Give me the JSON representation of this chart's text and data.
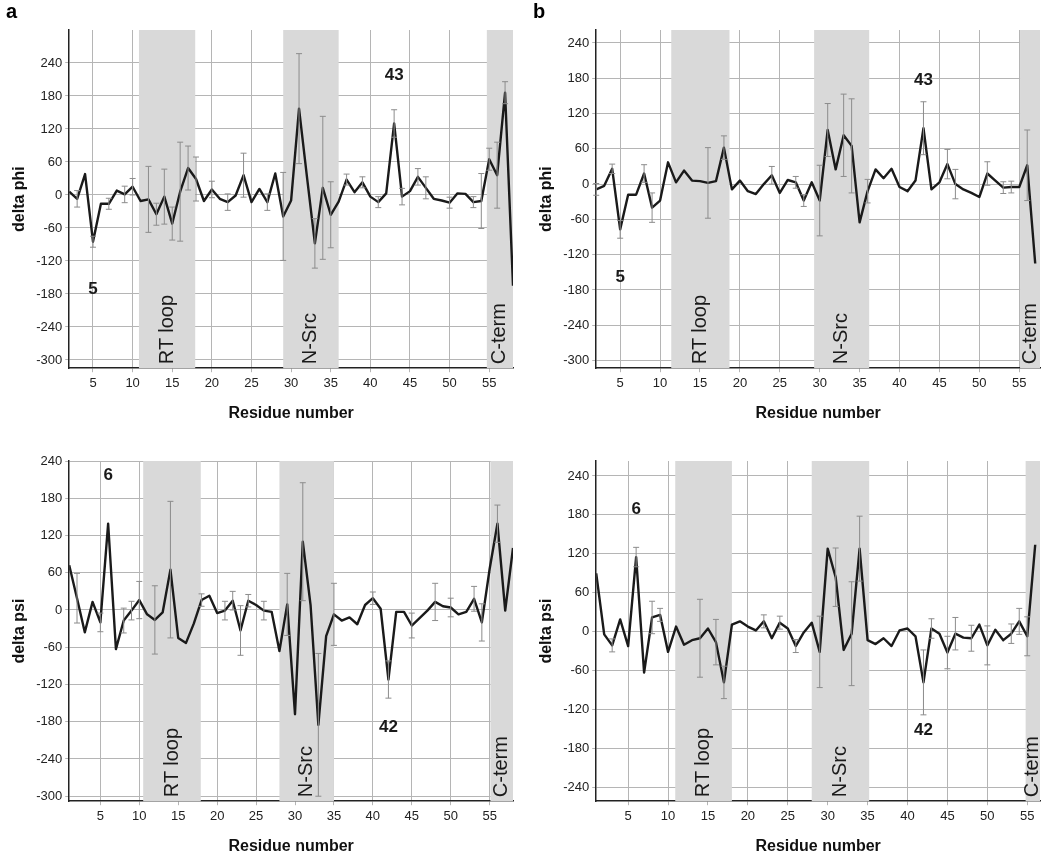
{
  "chart_data": [
    {
      "type": "line",
      "title": "a",
      "xlabel": "Residue number",
      "ylabel": "delta phi",
      "grid": true,
      "marker": "none",
      "xlim": [
        2,
        58
      ],
      "xticks": [
        5,
        10,
        15,
        20,
        25,
        30,
        35,
        40,
        45,
        50,
        55
      ],
      "ylim": [
        -315,
        300
      ],
      "yticks": [
        -300,
        -240,
        -180,
        -120,
        -60,
        0,
        60,
        120,
        180,
        240
      ],
      "x": [
        2,
        3,
        4,
        5,
        6,
        7,
        8,
        9,
        10,
        11,
        12,
        13,
        14,
        15,
        16,
        17,
        18,
        19,
        20,
        21,
        22,
        23,
        24,
        25,
        26,
        27,
        28,
        29,
        30,
        31,
        32,
        33,
        34,
        35,
        36,
        37,
        38,
        39,
        40,
        41,
        42,
        43,
        44,
        45,
        46,
        47,
        48,
        49,
        50,
        51,
        52,
        53,
        54,
        55,
        56,
        57,
        58
      ],
      "series": [
        {
          "color": "#1a1a1a",
          "values": [
            6,
            -7,
            38,
            -85,
            -16,
            -16,
            8,
            1,
            15,
            -11,
            -8,
            -35,
            -3,
            -52,
            6,
            49,
            29,
            -11,
            10,
            -7,
            -13,
            -1,
            36,
            -13,
            11,
            -13,
            39,
            -39,
            -10,
            157,
            33,
            -88,
            13,
            -36,
            -12,
            28,
            5,
            23,
            -3,
            -13,
            3,
            130,
            -3,
            7,
            33,
            13,
            -7,
            -10,
            -14,
            3,
            2,
            -13,
            -11,
            65,
            36,
            186,
            -165
          ],
          "errors": [
            null,
            15,
            null,
            10,
            null,
            10,
            null,
            15,
            15,
            null,
            60,
            20,
            50,
            30,
            90,
            40,
            40,
            null,
            15,
            null,
            15,
            null,
            40,
            null,
            null,
            15,
            null,
            80,
            null,
            100,
            null,
            45,
            130,
            60,
            null,
            10,
            null,
            10,
            null,
            10,
            null,
            25,
            15,
            null,
            15,
            20,
            null,
            null,
            10,
            null,
            null,
            10,
            50,
            20,
            60,
            20,
            null
          ]
        }
      ],
      "bands": [
        {
          "axis": "x",
          "from": 10.8,
          "to": 17.9,
          "label": "RT loop",
          "color": "#d9d9d9"
        },
        {
          "axis": "x",
          "from": 29,
          "to": 36,
          "label": "N-Src",
          "color": "#d9d9d9"
        },
        {
          "axis": "x",
          "from": 54.7,
          "to": 58,
          "label": "C-term",
          "color": "#d9d9d9"
        }
      ],
      "annotations": [
        {
          "text": "5",
          "x": 5,
          "y": -85
        },
        {
          "text": "43",
          "x": 43,
          "y": 130
        }
      ]
    },
    {
      "type": "line",
      "title": "b",
      "xlabel": "Residue number",
      "ylabel": "delta phi",
      "grid": true,
      "marker": "none",
      "xlim": [
        2,
        57.6
      ],
      "xticks": [
        5,
        10,
        15,
        20,
        25,
        30,
        35,
        40,
        45,
        50,
        55
      ],
      "ylim": [
        -313,
        262
      ],
      "yticks": [
        -300,
        -240,
        -180,
        -120,
        -60,
        0,
        60,
        120,
        180,
        240
      ],
      "x": [
        2,
        3,
        4,
        5,
        6,
        7,
        8,
        9,
        10,
        11,
        12,
        13,
        14,
        15,
        16,
        17,
        18,
        19,
        20,
        21,
        22,
        23,
        24,
        25,
        26,
        27,
        28,
        29,
        30,
        31,
        32,
        33,
        34,
        35,
        36,
        37,
        38,
        39,
        40,
        41,
        42,
        43,
        44,
        45,
        46,
        47,
        48,
        49,
        50,
        51,
        52,
        53,
        54,
        55,
        56,
        57
      ],
      "series": [
        {
          "color": "#1a1a1a",
          "values": [
            -9,
            -3,
            26,
            -77,
            -18,
            -18,
            18,
            -40,
            -28,
            37,
            3,
            23,
            6,
            5,
            2,
            5,
            62,
            -9,
            6,
            -12,
            -17,
            0,
            15,
            -15,
            7,
            3,
            -28,
            3,
            -28,
            92,
            25,
            83,
            65,
            -65,
            -12,
            25,
            10,
            26,
            -5,
            -12,
            6,
            95,
            -9,
            3,
            34,
            0,
            -9,
            -15,
            -22,
            18,
            6,
            -6,
            -5,
            -5,
            32,
            -135
          ],
          "errors": [
            10,
            null,
            8,
            15,
            null,
            null,
            15,
            25,
            null,
            null,
            null,
            null,
            null,
            null,
            60,
            null,
            20,
            null,
            null,
            null,
            null,
            null,
            15,
            null,
            null,
            10,
            10,
            null,
            60,
            45,
            null,
            70,
            80,
            null,
            20,
            null,
            null,
            null,
            null,
            null,
            null,
            45,
            null,
            null,
            25,
            25,
            null,
            null,
            null,
            20,
            null,
            10,
            10,
            null,
            60,
            null
          ]
        }
      ],
      "bands": [
        {
          "axis": "x",
          "from": 11.4,
          "to": 18.7,
          "label": "RT loop",
          "color": "#d9d9d9"
        },
        {
          "axis": "x",
          "from": 29.3,
          "to": 36.2,
          "label": "N-Src",
          "color": "#d9d9d9"
        },
        {
          "axis": "x",
          "from": 55.1,
          "to": 57.6,
          "label": "C-term",
          "color": "#d9d9d9"
        }
      ],
      "annotations": [
        {
          "text": "5",
          "x": 5,
          "y": -77
        },
        {
          "text": "43",
          "x": 43,
          "y": 95
        }
      ]
    },
    {
      "type": "line",
      "xlabel": "Residue number",
      "ylabel": "delta psi",
      "grid": true,
      "marker": "none",
      "xlim": [
        1,
        58
      ],
      "xticks": [
        5,
        10,
        15,
        20,
        25,
        30,
        35,
        40,
        45,
        50,
        55
      ],
      "ylim": [
        -308,
        240
      ],
      "yticks": [
        -300,
        -240,
        -180,
        -120,
        -60,
        0,
        60,
        120,
        180,
        240
      ],
      "x": [
        1,
        2,
        3,
        4,
        5,
        6,
        7,
        8,
        9,
        10,
        11,
        12,
        13,
        14,
        15,
        16,
        17,
        18,
        19,
        20,
        21,
        22,
        23,
        24,
        25,
        26,
        27,
        28,
        29,
        30,
        31,
        32,
        33,
        34,
        35,
        36,
        37,
        38,
        39,
        40,
        41,
        42,
        43,
        44,
        45,
        46,
        47,
        48,
        49,
        50,
        51,
        52,
        53,
        54,
        55,
        56,
        57,
        58
      ],
      "series": [
        {
          "color": "#1a1a1a",
          "values": [
            72,
            19,
            -36,
            13,
            -20,
            139,
            -63,
            -17,
            -1,
            16,
            -7,
            -16,
            -4,
            65,
            -45,
            -53,
            -22,
            16,
            23,
            -5,
            -1,
            15,
            -33,
            15,
            8,
            -1,
            -3,
            -66,
            9,
            -168,
            110,
            8,
            -185,
            -42,
            -7,
            -17,
            -12,
            -23,
            8,
            19,
            2,
            -112,
            -3,
            -3,
            -25,
            -13,
            -1,
            13,
            6,
            4,
            -7,
            -3,
            18,
            -20,
            66,
            139,
            -1,
            100
          ],
          "errors": [
            null,
            40,
            null,
            null,
            15,
            null,
            null,
            20,
            15,
            30,
            null,
            55,
            null,
            110,
            null,
            null,
            null,
            10,
            null,
            null,
            15,
            15,
            40,
            10,
            null,
            15,
            null,
            null,
            50,
            null,
            95,
            null,
            115,
            null,
            50,
            null,
            null,
            null,
            null,
            10,
            null,
            30,
            null,
            null,
            20,
            null,
            null,
            30,
            null,
            15,
            null,
            null,
            20,
            30,
            null,
            30,
            null,
            null
          ]
        }
      ],
      "bands": [
        {
          "axis": "x",
          "from": 10.5,
          "to": 17.9,
          "label": "RT loop",
          "color": "#d9d9d9"
        },
        {
          "axis": "x",
          "from": 28,
          "to": 35,
          "label": "N-Src",
          "color": "#d9d9d9"
        },
        {
          "axis": "x",
          "from": 55.1,
          "to": 58,
          "label": "C-term",
          "color": "#d9d9d9"
        }
      ],
      "annotations": [
        {
          "text": "6",
          "x": 6,
          "y": 139
        },
        {
          "text": "42",
          "x": 42,
          "y": -112
        }
      ]
    },
    {
      "type": "line",
      "xlabel": "Residue number",
      "ylabel": "delta psi",
      "grid": true,
      "marker": "none",
      "xlim": [
        1,
        56.6
      ],
      "xticks": [
        5,
        10,
        15,
        20,
        25,
        30,
        35,
        40,
        45,
        50,
        55
      ],
      "ylim": [
        -261,
        263
      ],
      "yticks": [
        -240,
        -180,
        -120,
        -60,
        0,
        60,
        120,
        180,
        240
      ],
      "x": [
        1,
        2,
        3,
        4,
        5,
        6,
        7,
        8,
        9,
        10,
        11,
        12,
        13,
        14,
        15,
        16,
        17,
        18,
        19,
        20,
        21,
        22,
        23,
        24,
        25,
        26,
        27,
        28,
        29,
        30,
        31,
        32,
        33,
        34,
        35,
        36,
        37,
        38,
        39,
        40,
        41,
        42,
        43,
        44,
        45,
        46,
        47,
        48,
        49,
        50,
        51,
        52,
        53,
        54,
        55,
        56
      ],
      "series": [
        {
          "color": "#1a1a1a",
          "values": [
            90,
            -4,
            -21,
            19,
            -22,
            115,
            -63,
            22,
            26,
            -31,
            8,
            -20,
            -13,
            -10,
            5,
            -16,
            -78,
            11,
            16,
            8,
            2,
            16,
            -10,
            14,
            5,
            -22,
            -1,
            14,
            -31,
            128,
            84,
            -28,
            -3,
            128,
            -13,
            -19,
            -10,
            -22,
            2,
            5,
            -7,
            -78,
            5,
            -3,
            -32,
            -3,
            -9,
            -10,
            11,
            -21,
            3,
            -13,
            -3,
            16,
            -7,
            134
          ],
          "errors": [
            null,
            null,
            10,
            null,
            null,
            15,
            null,
            25,
            10,
            null,
            null,
            null,
            null,
            60,
            null,
            35,
            25,
            null,
            null,
            null,
            null,
            10,
            null,
            10,
            null,
            10,
            null,
            null,
            55,
            null,
            45,
            null,
            80,
            50,
            null,
            null,
            null,
            null,
            null,
            null,
            null,
            50,
            15,
            null,
            25,
            25,
            null,
            20,
            null,
            30,
            null,
            null,
            15,
            20,
            30,
            null
          ]
        }
      ],
      "bands": [
        {
          "axis": "x",
          "from": 10.9,
          "to": 18,
          "label": "RT loop",
          "color": "#d9d9d9"
        },
        {
          "axis": "x",
          "from": 28,
          "to": 35.2,
          "label": "N-Src",
          "color": "#d9d9d9"
        },
        {
          "axis": "x",
          "from": 54.8,
          "to": 56.6,
          "label": "C-term",
          "color": "#d9d9d9"
        }
      ],
      "annotations": [
        {
          "text": "6",
          "x": 6,
          "y": 115
        },
        {
          "text": "42",
          "x": 42,
          "y": -78
        }
      ]
    }
  ]
}
